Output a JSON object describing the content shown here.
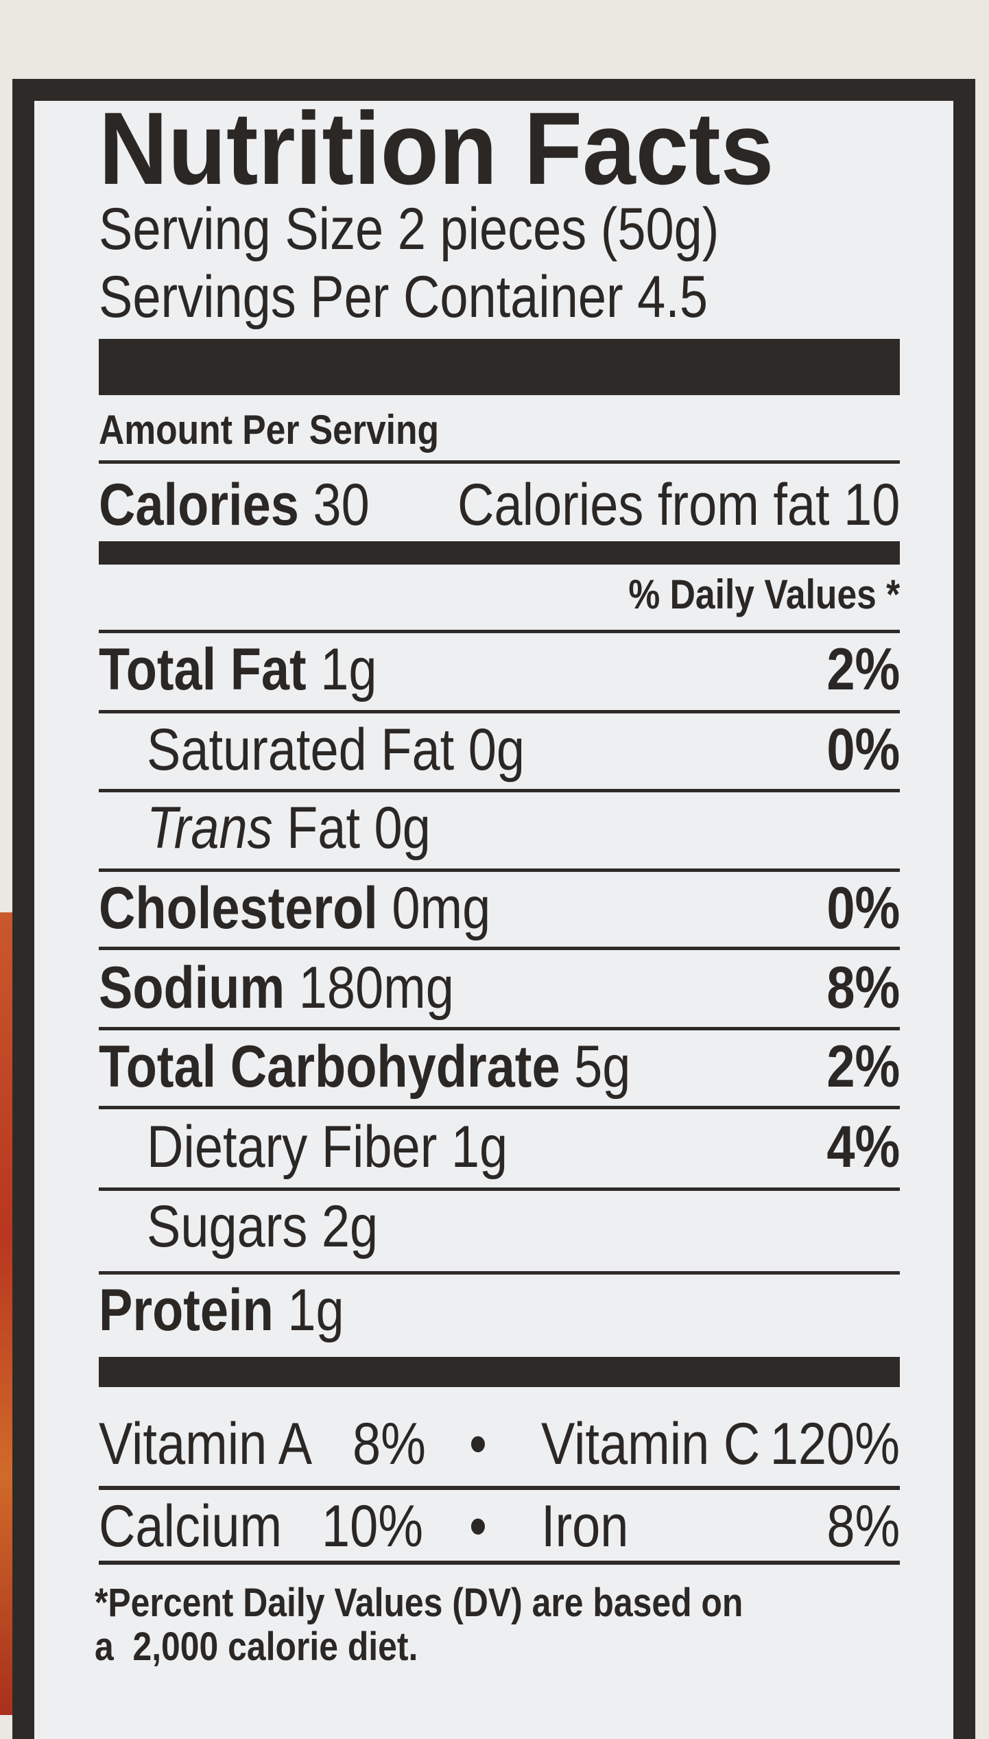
{
  "title": "Nutrition Facts",
  "serving_size": "Serving Size 2 pieces (50g)",
  "servings_per_container": "Servings Per Container 4.5",
  "amount_per_serving": "Amount Per Serving",
  "calories": {
    "label": "Calories",
    "value": "30",
    "from_fat": "Calories from fat 10"
  },
  "daily_values_header": "% Daily Values *",
  "nutrients": [
    {
      "label": "Total Fat",
      "amount": "1g",
      "dv": "2%",
      "bold": true,
      "indent": false
    },
    {
      "label": "Saturated Fat",
      "amount": "0g",
      "dv": "0%",
      "bold": false,
      "indent": true
    },
    {
      "label": "Trans",
      "label_suffix": "Fat",
      "amount": "0g",
      "dv": "",
      "bold": false,
      "indent": true
    },
    {
      "label": "Cholesterol",
      "amount": "0mg",
      "dv": "0%",
      "bold": true,
      "indent": false
    },
    {
      "label": "Sodium",
      "amount": "180mg",
      "dv": "8%",
      "bold": true,
      "indent": false
    },
    {
      "label": "Total Carbohydrate",
      "amount": "5g",
      "dv": "2%",
      "bold": true,
      "indent": false
    },
    {
      "label": "Dietary Fiber",
      "amount": "1g",
      "dv": "4%",
      "bold": false,
      "indent": true
    },
    {
      "label": "Sugars",
      "amount": "2g",
      "dv": "",
      "bold": false,
      "indent": true
    },
    {
      "label": "Protein",
      "amount": "1g",
      "dv": "",
      "bold": true,
      "indent": false
    }
  ],
  "vitamins": [
    {
      "left_label": "Vitamin A",
      "left_value": "8%",
      "bullet": "•",
      "right_label": "Vitamin C",
      "right_value": "120%"
    },
    {
      "left_label": "Calcium",
      "left_value": "10%",
      "bullet": "•",
      "right_label": "Iron",
      "right_value": "8%"
    }
  ],
  "footnote": [
    "*Percent Daily Values (DV) are based on",
    "a  2,000 calorie diet."
  ],
  "colors": {
    "ink": "#2b2725",
    "label_bg": "#eeeff0",
    "package_red": "#b8361f"
  }
}
